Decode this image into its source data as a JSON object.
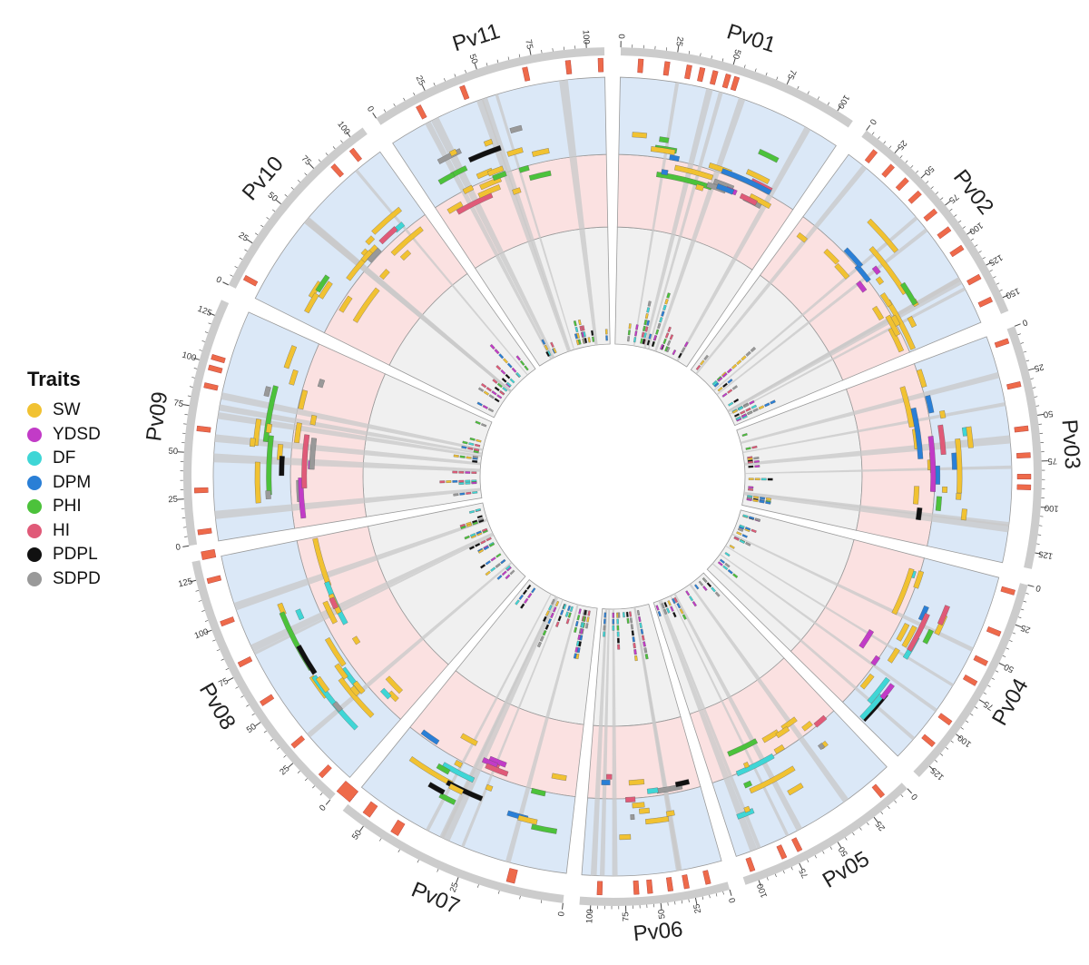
{
  "legend": {
    "title": "Traits",
    "items": [
      {
        "label": "SW",
        "color": "#f1c232"
      },
      {
        "label": "YDSD",
        "color": "#c23bc7"
      },
      {
        "label": "DF",
        "color": "#3fd6d6"
      },
      {
        "label": "DPM",
        "color": "#2a7fd6"
      },
      {
        "label": "PHI",
        "color": "#4cc23b"
      },
      {
        "label": "HI",
        "color": "#e05a78"
      },
      {
        "label": "PDPL",
        "color": "#111111"
      },
      {
        "label": "SDPD",
        "color": "#999999"
      }
    ]
  },
  "colors": {
    "outer_track": "#dbe8f7",
    "middle_track": "#fbe1e1",
    "inner_track": "#f0f0f0",
    "region_marker": "#ee6a4a",
    "ideogram": "#cccccc",
    "link": "#c8c8c8"
  },
  "chromosomes": [
    {
      "name": "Pv01",
      "length": 52,
      "ticks": [
        0,
        25,
        50,
        75,
        100
      ],
      "regions": [
        8,
        20,
        30,
        36,
        42,
        48,
        52
      ]
    },
    {
      "name": "Pv02",
      "length": 49,
      "ticks": [
        0,
        25,
        50,
        75,
        100,
        125,
        150
      ],
      "regions": [
        12,
        28,
        42,
        55,
        72,
        88,
        104,
        128,
        146
      ]
    },
    {
      "name": "Pv03",
      "length": 52,
      "ticks": [
        0,
        25,
        50,
        75,
        100,
        125
      ],
      "regions": [
        5,
        30,
        55,
        70,
        82,
        88
      ]
    },
    {
      "name": "Pv04",
      "length": 47,
      "ticks": [
        0,
        25,
        50,
        75,
        100,
        125
      ],
      "regions": [
        5,
        32,
        52,
        66,
        95,
        112
      ]
    },
    {
      "name": "Pv05",
      "length": 40,
      "ticks": [
        0,
        25,
        50,
        75,
        100
      ],
      "regions": [
        12,
        70,
        80,
        100
      ]
    },
    {
      "name": "Pv06",
      "length": 32,
      "ticks": [
        0,
        25,
        50,
        75,
        100
      ],
      "regions": [
        12,
        28,
        40,
        55,
        65,
        92
      ]
    },
    {
      "name": "Pv07",
      "length": 51,
      "ticks": [
        0,
        25,
        50
      ],
      "regions": [
        12,
        42,
        50,
        56,
        60
      ]
    },
    {
      "name": "Pv08",
      "length": 59,
      "ticks": [
        0,
        25,
        50,
        75,
        100,
        125
      ],
      "regions": [
        10,
        30,
        56,
        78,
        100,
        122,
        138
      ]
    },
    {
      "name": "Pv09",
      "length": 53,
      "ticks": [
        0,
        25,
        50,
        75,
        100,
        125
      ],
      "regions": [
        5,
        28,
        62,
        86,
        96,
        102
      ]
    },
    {
      "name": "Pv10",
      "length": 44,
      "ticks": [
        0,
        25,
        50,
        75,
        100
      ],
      "regions": [
        6,
        82,
        95
      ]
    },
    {
      "name": "Pv11",
      "length": 51,
      "ticks": [
        0,
        25,
        50,
        75,
        100
      ],
      "regions": [
        18,
        40,
        70,
        90,
        105
      ]
    }
  ],
  "chart_data": {
    "type": "circos",
    "chromosomes": [
      "Pv01",
      "Pv02",
      "Pv03",
      "Pv04",
      "Pv05",
      "Pv06",
      "Pv07",
      "Pv08",
      "Pv09",
      "Pv10",
      "Pv11"
    ],
    "traits": [
      "SW",
      "YDSD",
      "DF",
      "DPM",
      "PHI",
      "HI",
      "PDPL",
      "SDPD"
    ]
  }
}
